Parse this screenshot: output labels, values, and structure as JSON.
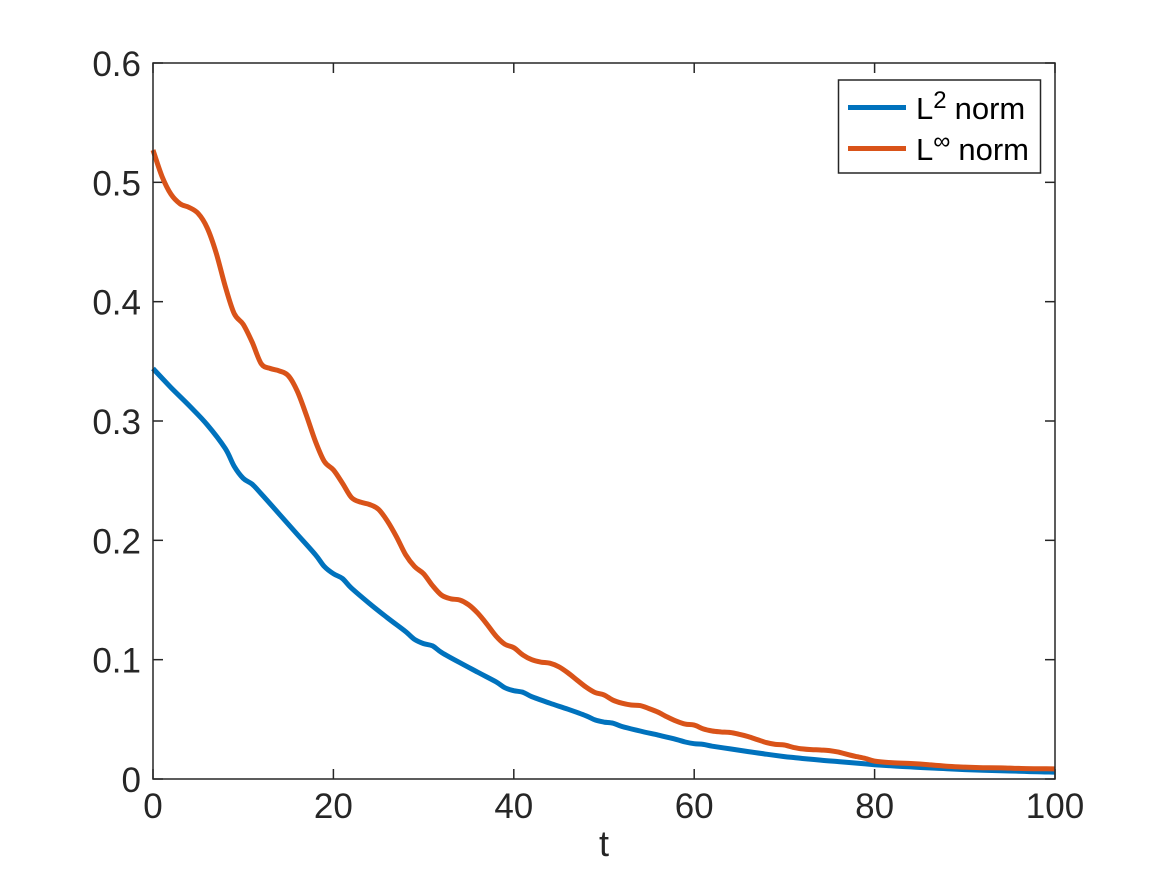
{
  "figure": {
    "background": "#FFFFFF",
    "axis_color": "#262626",
    "plot_border_color": "#262626"
  },
  "chart_data": {
    "type": "line",
    "title": "",
    "xlabel": "t",
    "ylabel": "",
    "xlim": [
      0,
      100
    ],
    "ylim": [
      0,
      0.6
    ],
    "x_ticks": [
      0,
      20,
      40,
      60,
      80,
      100
    ],
    "x_tick_labels": [
      "0",
      "20",
      "40",
      "60",
      "80",
      "100"
    ],
    "y_ticks": [
      0,
      0.1,
      0.2,
      0.3,
      0.4,
      0.5,
      0.6
    ],
    "y_tick_labels": [
      "0",
      "0.1",
      "0.2",
      "0.3",
      "0.4",
      "0.5",
      "0.6"
    ],
    "grid": false,
    "legend_position": "top-right",
    "legend": {
      "border_color": "#262626",
      "background": "#FFFFFF",
      "text_color": "#000000"
    },
    "series": [
      {
        "name": "L^2 norm",
        "label_base": "L",
        "label_sup": "2",
        "label_rest": "norm",
        "color": "#0072BD",
        "line_width": 5,
        "t": [
          0,
          2,
          4,
          6,
          8,
          9,
          10,
          11,
          12,
          14,
          16,
          18,
          19,
          20,
          21,
          22,
          24,
          26,
          28,
          29,
          30,
          31,
          32,
          34,
          36,
          38,
          39,
          40,
          41,
          42,
          44,
          46,
          48,
          49,
          50,
          51,
          52,
          54,
          56,
          58,
          59,
          60,
          61,
          62,
          64,
          66,
          68,
          70,
          71,
          72,
          74,
          76,
          78,
          80,
          82,
          84,
          86,
          88,
          90,
          92,
          94,
          96,
          98,
          100
        ],
        "values": [
          0.344,
          0.328,
          0.313,
          0.297,
          0.277,
          0.262,
          0.252,
          0.247,
          0.239,
          0.222,
          0.205,
          0.188,
          0.178,
          0.172,
          0.168,
          0.16,
          0.147,
          0.135,
          0.1235,
          0.117,
          0.1135,
          0.1115,
          0.106,
          0.0975,
          0.0895,
          0.0815,
          0.0765,
          0.074,
          0.0727,
          0.069,
          0.0635,
          0.0585,
          0.053,
          0.0495,
          0.0477,
          0.0468,
          0.044,
          0.0402,
          0.0368,
          0.0332,
          0.031,
          0.0296,
          0.029,
          0.0275,
          0.0252,
          0.023,
          0.0208,
          0.0188,
          0.018,
          0.0172,
          0.0158,
          0.0146,
          0.0133,
          0.012,
          0.011,
          0.0101,
          0.0093,
          0.0086,
          0.0079,
          0.0074,
          0.0069,
          0.0065,
          0.0061,
          0.0058
        ]
      },
      {
        "name": "L^inf norm",
        "label_base": "L",
        "label_sup": "∞",
        "label_rest": "norm",
        "color": "#D95319",
        "line_width": 5,
        "t": [
          0,
          1,
          2,
          3,
          4,
          5,
          6,
          7,
          8,
          9,
          10,
          11,
          12,
          13,
          14,
          15,
          16,
          17,
          18,
          19,
          20,
          21,
          22,
          23,
          24,
          25,
          26,
          27,
          28,
          29,
          30,
          31,
          32,
          33,
          34,
          35,
          36,
          37,
          38,
          39,
          40,
          41,
          42,
          43,
          44,
          45,
          46,
          47,
          48,
          49,
          50,
          51,
          52,
          53,
          54,
          55,
          56,
          57,
          58,
          59,
          60,
          61,
          62,
          63,
          64,
          65,
          66,
          67,
          68,
          69,
          70,
          71,
          72,
          73,
          74,
          75,
          76,
          77,
          78,
          79,
          80,
          82,
          84,
          85,
          86,
          88,
          90,
          92,
          94,
          95,
          96,
          98,
          100
        ],
        "values": [
          0.527,
          0.505,
          0.49,
          0.482,
          0.479,
          0.474,
          0.462,
          0.441,
          0.413,
          0.39,
          0.381,
          0.366,
          0.348,
          0.344,
          0.342,
          0.338,
          0.325,
          0.305,
          0.283,
          0.266,
          0.259,
          0.248,
          0.236,
          0.232,
          0.23,
          0.226,
          0.216,
          0.203,
          0.188,
          0.178,
          0.172,
          0.162,
          0.154,
          0.151,
          0.15,
          0.146,
          0.139,
          0.13,
          0.12,
          0.113,
          0.11,
          0.104,
          0.1,
          0.098,
          0.097,
          0.094,
          0.089,
          0.083,
          0.077,
          0.0725,
          0.0705,
          0.066,
          0.0635,
          0.062,
          0.0615,
          0.059,
          0.056,
          0.052,
          0.0485,
          0.046,
          0.0452,
          0.042,
          0.0402,
          0.0394,
          0.039,
          0.0375,
          0.0355,
          0.033,
          0.0305,
          0.029,
          0.0285,
          0.0265,
          0.0252,
          0.0246,
          0.0243,
          0.0238,
          0.0225,
          0.0206,
          0.0188,
          0.0172,
          0.015,
          0.0136,
          0.013,
          0.0126,
          0.012,
          0.0107,
          0.01,
          0.0095,
          0.0093,
          0.0091,
          0.0089,
          0.0086,
          0.0085
        ]
      }
    ]
  }
}
